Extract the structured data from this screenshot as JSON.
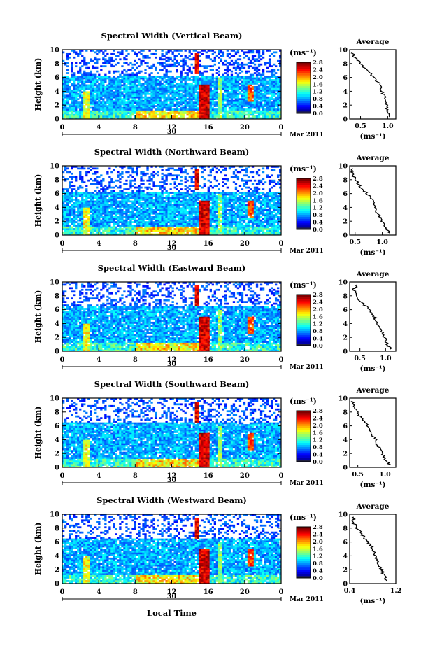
{
  "figure": {
    "xlabel": "Local Time",
    "ylabel": "Height (km)",
    "date_text": "Mar 2011",
    "day_label": "30",
    "colorbar_unit": "(ms⁻¹)",
    "colorbar_ticks": [
      "0.0",
      "0.4",
      "0.8",
      "1.2",
      "1.6",
      "2.0",
      "2.4",
      "2.8"
    ],
    "avg_title": "Average",
    "avg_xlabel": "(ms⁻¹)"
  },
  "chart_data": [
    {
      "type": "heatmap",
      "title": "Spectral Width (Vertical Beam)",
      "x_ticks": [
        "0",
        "4",
        "8",
        "12",
        "16",
        "20",
        "0"
      ],
      "y_ticks": [
        "0",
        "2",
        "4",
        "6",
        "8",
        "10"
      ],
      "xlim": [
        0,
        24
      ],
      "ylim": [
        0,
        10
      ],
      "color_range": [
        0.0,
        2.8
      ],
      "cloud_top_km": 6.3,
      "average_profile": {
        "xlim": [
          0.3,
          1.15
        ],
        "x_ticks": [
          "0.5",
          "1.0"
        ],
        "height": [
          0.3,
          1,
          2,
          3,
          4,
          5,
          6,
          7,
          8,
          9,
          9.6
        ],
        "value": [
          1.05,
          1.0,
          0.98,
          0.95,
          0.9,
          0.85,
          0.75,
          0.62,
          0.5,
          0.38,
          0.35
        ]
      }
    },
    {
      "type": "heatmap",
      "title": "Spectral Width (Northward Beam)",
      "x_ticks": [
        "0",
        "4",
        "8",
        "12",
        "16",
        "20",
        "0"
      ],
      "y_ticks": [
        "0",
        "2",
        "4",
        "6",
        "8",
        "10"
      ],
      "xlim": [
        0,
        24
      ],
      "ylim": [
        0,
        10
      ],
      "color_range": [
        0.0,
        2.8
      ],
      "cloud_top_km": 6.2,
      "average_profile": {
        "xlim": [
          0.4,
          1.25
        ],
        "x_ticks": [
          "0.5",
          "1.0"
        ],
        "height": [
          0.3,
          1,
          2,
          3,
          4,
          5,
          6,
          7,
          8,
          9,
          9.6
        ],
        "value": [
          1.15,
          1.05,
          1.0,
          0.92,
          0.85,
          0.82,
          0.72,
          0.6,
          0.5,
          0.45,
          0.46
        ]
      }
    },
    {
      "type": "heatmap",
      "title": "Spectral Width (Eastward Beam)",
      "x_ticks": [
        "0",
        "4",
        "8",
        "12",
        "16",
        "20",
        "0"
      ],
      "y_ticks": [
        "0",
        "2",
        "4",
        "6",
        "8",
        "10"
      ],
      "xlim": [
        0,
        24
      ],
      "ylim": [
        0,
        10
      ],
      "color_range": [
        0.0,
        2.8
      ],
      "cloud_top_km": 6.5,
      "average_profile": {
        "xlim": [
          0.3,
          1.2
        ],
        "x_ticks": [
          "0.5",
          "1.0"
        ],
        "height": [
          0.3,
          1,
          2,
          3,
          4,
          5,
          6,
          7,
          8,
          9,
          9.6
        ],
        "value": [
          1.1,
          1.02,
          0.98,
          0.9,
          0.84,
          0.78,
          0.68,
          0.55,
          0.42,
          0.38,
          0.45
        ]
      }
    },
    {
      "type": "heatmap",
      "title": "Spectral Width (Southward Beam)",
      "x_ticks": [
        "0",
        "4",
        "8",
        "12",
        "16",
        "20",
        "0"
      ],
      "y_ticks": [
        "0",
        "2",
        "4",
        "6",
        "8",
        "10"
      ],
      "xlim": [
        0,
        24
      ],
      "ylim": [
        0,
        10
      ],
      "color_range": [
        0.0,
        2.8
      ],
      "cloud_top_km": 6.4,
      "average_profile": {
        "xlim": [
          0.35,
          1.2
        ],
        "x_ticks": [
          "0.5",
          "1.0"
        ],
        "height": [
          0.3,
          1,
          2,
          3,
          4,
          5,
          6,
          7,
          8,
          9,
          9.6
        ],
        "value": [
          1.1,
          1.0,
          0.95,
          0.88,
          0.82,
          0.76,
          0.68,
          0.58,
          0.48,
          0.42,
          0.4
        ]
      }
    },
    {
      "type": "heatmap",
      "title": "Spectral Width (Westward Beam)",
      "x_ticks": [
        "0",
        "4",
        "8",
        "12",
        "16",
        "20",
        "0"
      ],
      "y_ticks": [
        "0",
        "2",
        "4",
        "6",
        "8",
        "10"
      ],
      "xlim": [
        0,
        24
      ],
      "ylim": [
        0,
        10
      ],
      "color_range": [
        0.0,
        2.8
      ],
      "cloud_top_km": 6.6,
      "average_profile": {
        "xlim": [
          0.4,
          1.2
        ],
        "x_ticks": [
          "0.4",
          "1.2"
        ],
        "height": [
          0.3,
          1,
          2,
          3,
          4,
          5,
          6,
          7,
          8,
          9,
          9.6
        ],
        "value": [
          1.05,
          1.0,
          0.95,
          0.88,
          0.85,
          0.8,
          0.72,
          0.62,
          0.52,
          0.45,
          0.47
        ]
      }
    }
  ]
}
